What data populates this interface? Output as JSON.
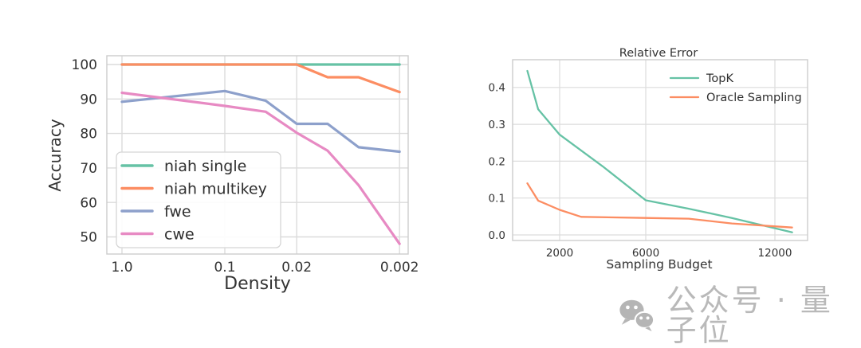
{
  "background": "#ffffff",
  "watermark": {
    "text": "公众号 · 量子位",
    "icon": "wechat-icon",
    "color": "#b9b9b9"
  },
  "chart_data": [
    {
      "type": "line",
      "title": "",
      "xlabel": "Density",
      "ylabel": "Accuracy",
      "xscale": "log-reversed",
      "grid": true,
      "x_tick_values": [
        1.0,
        0.1,
        0.02,
        0.002
      ],
      "x_tick_labels": [
        "1.0",
        "0.1",
        "0.02",
        "0.002"
      ],
      "y_tick_values": [
        50,
        60,
        70,
        80,
        90,
        100
      ],
      "y_tick_labels": [
        "50",
        "60",
        "70",
        "80",
        "90",
        "100"
      ],
      "xlim_note": "x decreases left to right, log scale",
      "ylim": [
        45,
        102.5
      ],
      "x": [
        1.0,
        0.1,
        0.04,
        0.02,
        0.01,
        0.005,
        0.002
      ],
      "series": [
        {
          "name": "niah single",
          "color": "#66c2a5",
          "values": [
            100,
            100,
            100,
            100,
            100,
            100,
            100
          ]
        },
        {
          "name": "niah multikey",
          "color": "#fc8d62",
          "values": [
            100,
            100,
            100,
            100,
            96.3,
            96.3,
            92
          ]
        },
        {
          "name": "fwe",
          "color": "#8da0cb",
          "values": [
            89.2,
            92.3,
            89.5,
            82.8,
            82.8,
            76,
            74.7
          ]
        },
        {
          "name": "cwe",
          "color": "#e78ac3",
          "values": [
            91.8,
            88,
            86.3,
            80.2,
            75,
            65,
            48
          ]
        }
      ],
      "legend": {
        "position": "lower left",
        "frame": true
      }
    },
    {
      "type": "line",
      "title": "Relative Error",
      "xlabel": "Sampling Budget",
      "ylabel": "",
      "xscale": "linear",
      "grid": true,
      "x_tick_values": [
        2000,
        6000,
        12000
      ],
      "x_tick_labels": [
        "2000",
        "6000",
        "12000"
      ],
      "y_tick_values": [
        0.0,
        0.1,
        0.2,
        0.3,
        0.4
      ],
      "y_tick_labels": [
        "0.0",
        "0.1",
        "0.2",
        "0.3",
        "0.4"
      ],
      "ylim": [
        -0.015,
        0.475
      ],
      "series": [
        {
          "name": "TopK",
          "color": "#66c2a5",
          "points": [
            [
              500,
              0.445
            ],
            [
              1000,
              0.341
            ],
            [
              2000,
              0.272
            ],
            [
              4000,
              0.186
            ],
            [
              6000,
              0.094
            ],
            [
              8000,
              0.071
            ],
            [
              10000,
              0.046
            ],
            [
              12800,
              0.007
            ]
          ]
        },
        {
          "name": "Oracle Sampling",
          "color": "#fc8d62",
          "points": [
            [
              500,
              0.14
            ],
            [
              1000,
              0.093
            ],
            [
              2000,
              0.068
            ],
            [
              3000,
              0.049
            ],
            [
              6000,
              0.046
            ],
            [
              8000,
              0.044
            ],
            [
              10000,
              0.031
            ],
            [
              12800,
              0.02
            ]
          ]
        }
      ],
      "legend": {
        "position": "upper right",
        "frame": false
      }
    }
  ]
}
